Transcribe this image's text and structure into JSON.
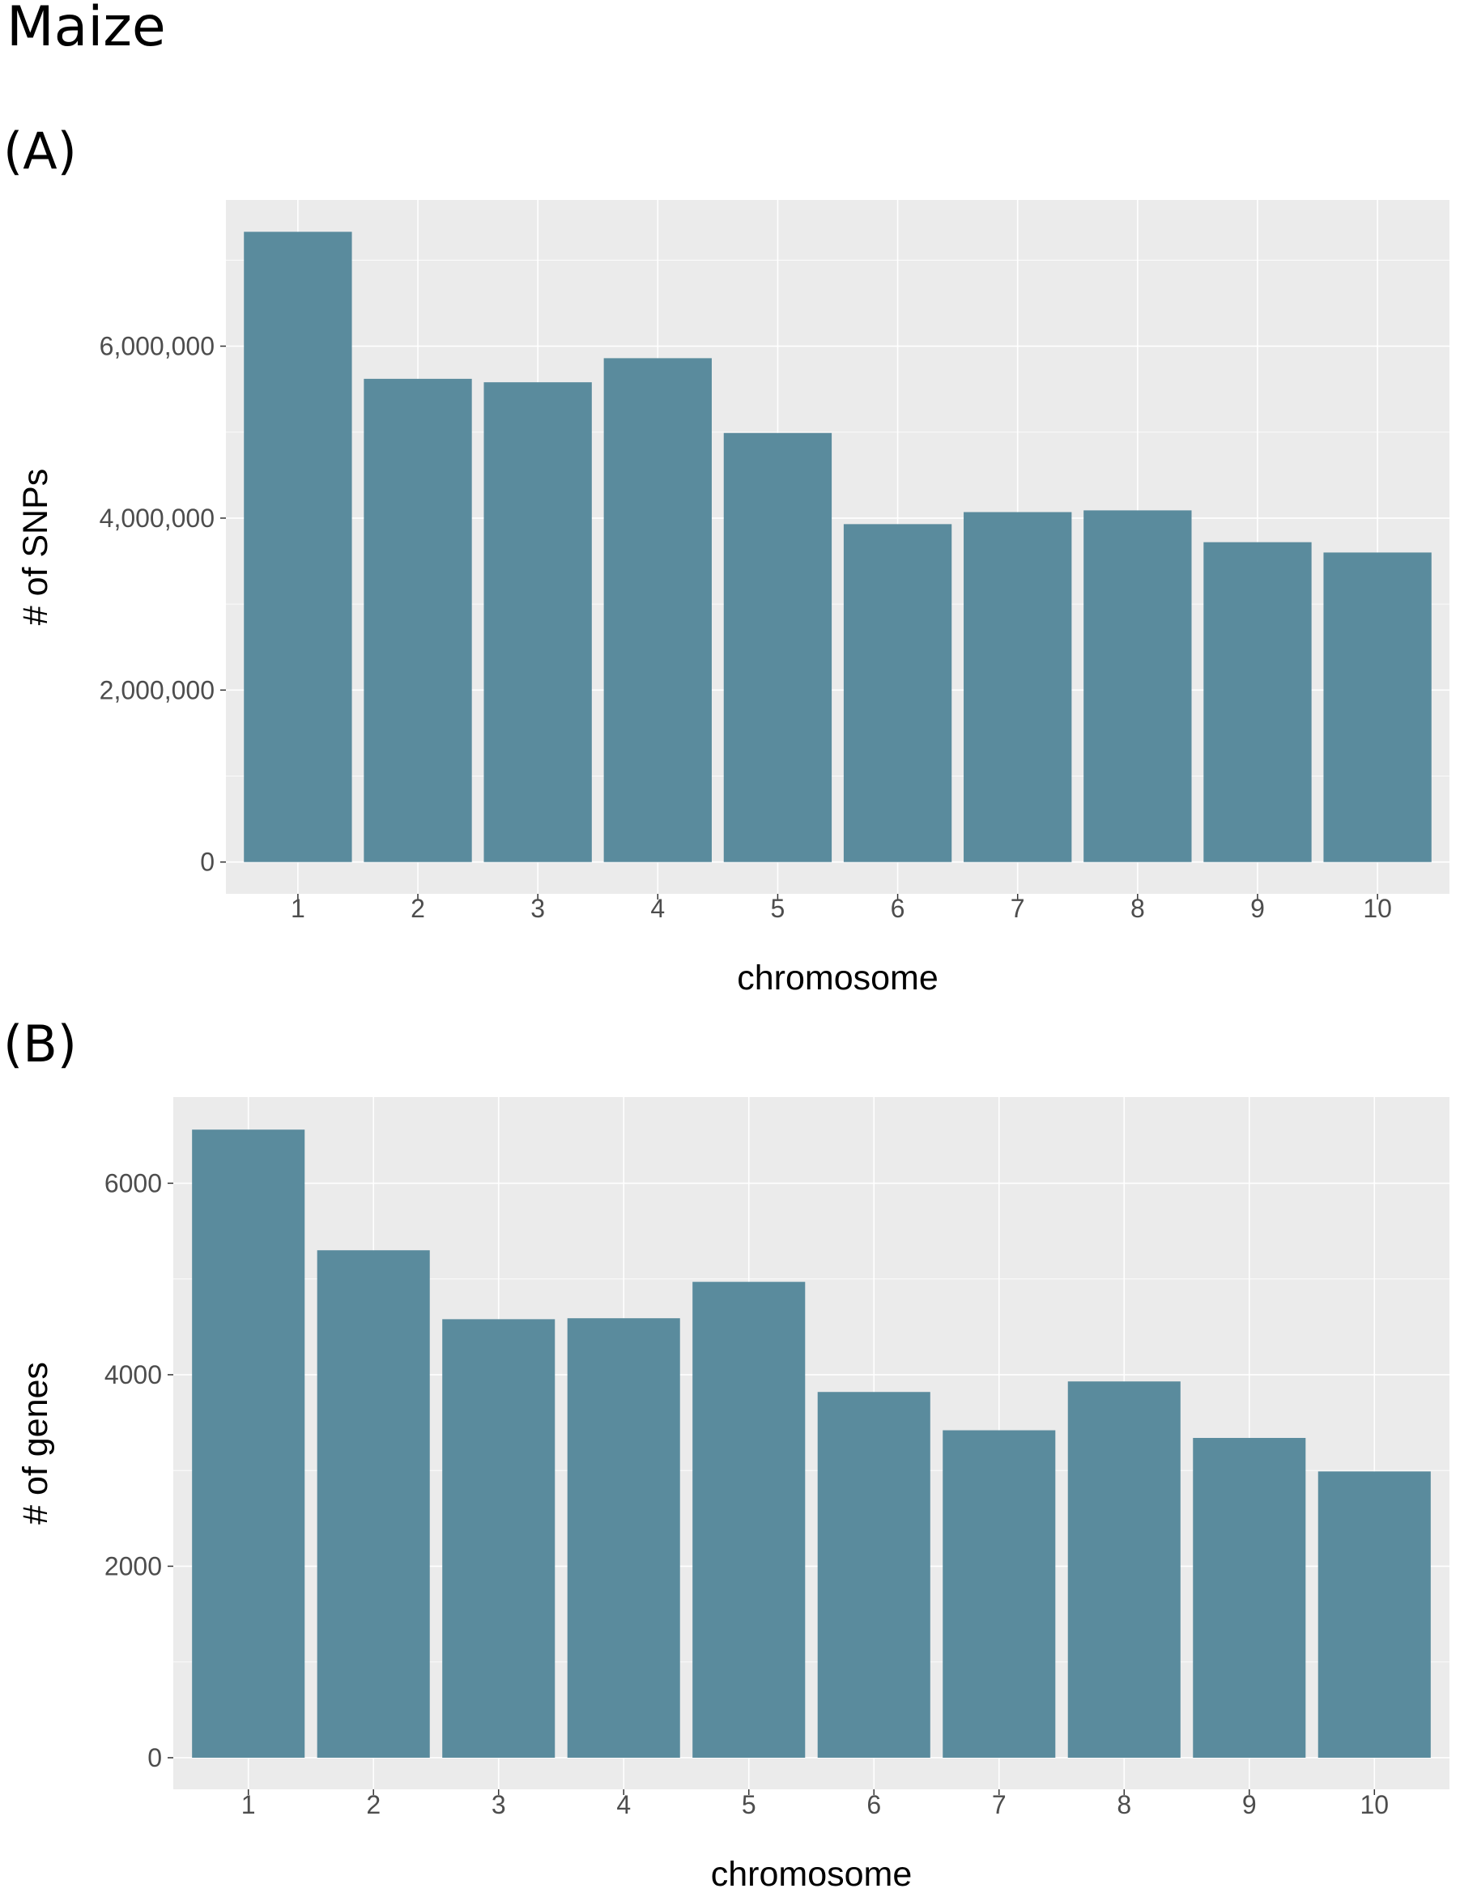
{
  "figure_title": "Maize",
  "colors": {
    "bar": "#5a8b9d",
    "panel_bg": "#ebebeb",
    "grid": "#ffffff"
  },
  "chart_data": [
    {
      "panel": "(A)",
      "type": "bar",
      "categories": [
        "1",
        "2",
        "3",
        "4",
        "5",
        "6",
        "7",
        "8",
        "9",
        "10"
      ],
      "values": [
        7330000,
        5620000,
        5580000,
        5860000,
        4990000,
        3930000,
        4070000,
        4090000,
        3720000,
        3600000
      ],
      "xlabel": "chromosome",
      "ylabel": "# of SNPs",
      "ylim": [
        -370000,
        7700000
      ],
      "yticks": [
        0,
        2000000,
        4000000,
        6000000
      ],
      "ytick_labels": [
        "0",
        "2,000,000",
        "4,000,000",
        "6,000,000"
      ],
      "grid": true
    },
    {
      "panel": "(B)",
      "type": "bar",
      "categories": [
        "1",
        "2",
        "3",
        "4",
        "5",
        "6",
        "7",
        "8",
        "9",
        "10"
      ],
      "values": [
        6560,
        5300,
        4580,
        4590,
        4970,
        3820,
        3420,
        3930,
        3340,
        2990
      ],
      "xlabel": "chromosome",
      "ylabel": "# of genes",
      "ylim": [
        -330,
        6900
      ],
      "yticks": [
        0,
        2000,
        4000,
        6000
      ],
      "ytick_labels": [
        "0",
        "2000",
        "4000",
        "6000"
      ],
      "grid": true
    }
  ]
}
